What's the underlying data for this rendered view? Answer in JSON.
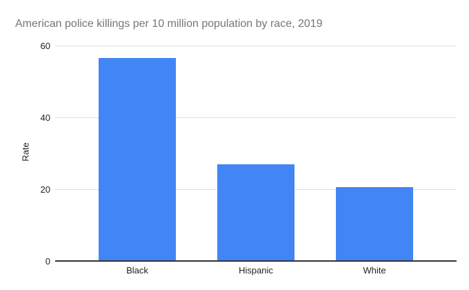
{
  "chart_data": {
    "type": "bar",
    "title": "American police killings per 10 million population by race, 2019",
    "categories": [
      "Black",
      "Hispanic",
      "White"
    ],
    "values": [
      56.5,
      27,
      20.5
    ],
    "xlabel": "",
    "ylabel": "Rate",
    "ylim": [
      0,
      60
    ],
    "yticks": [
      0,
      20,
      40,
      60
    ],
    "grid": true,
    "legend": "none",
    "colors": {
      "bar": "#4285f4",
      "gridline": "#e0e0e0",
      "axis_line": "#333333",
      "title_text": "#757575",
      "label_text": "#222222",
      "background": "#ffffff"
    }
  }
}
